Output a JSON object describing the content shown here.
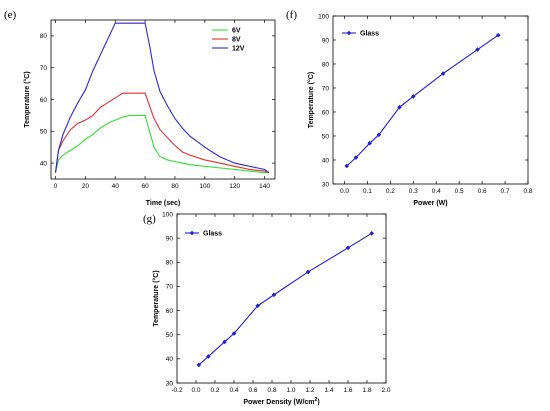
{
  "figure": {
    "panels": [
      {
        "label": "(e)"
      },
      {
        "label": "(f)"
      },
      {
        "label": "(g)"
      }
    ]
  },
  "chart_data": [
    {
      "type": "line",
      "panel": "(e)",
      "xlabel": "Time (sec)",
      "ylabel": "Temperature (°C)",
      "xlim": [
        -3,
        147
      ],
      "ylim": [
        35,
        85
      ],
      "xticks": [
        0,
        20,
        40,
        60,
        80,
        100,
        120,
        140
      ],
      "yticks": [
        40,
        50,
        60,
        70,
        80
      ],
      "legend_position": "top-right",
      "series": [
        {
          "name": "6V",
          "color": "#33dd33",
          "x": [
            0,
            2,
            5,
            10,
            15,
            20,
            25,
            30,
            35,
            40,
            45,
            50,
            55,
            60,
            63,
            66,
            70,
            75,
            80,
            85,
            90,
            100,
            110,
            120,
            130,
            140,
            143
          ],
          "y": [
            37,
            41,
            42.5,
            44,
            45.5,
            47.5,
            49,
            51,
            52.5,
            53.5,
            54.5,
            55,
            55,
            55,
            50,
            45,
            42,
            41,
            40.5,
            40,
            39.5,
            39,
            38.5,
            38,
            37.5,
            37,
            37
          ]
        },
        {
          "name": "8V",
          "color": "#e03030",
          "x": [
            0,
            2,
            5,
            10,
            15,
            20,
            25,
            30,
            35,
            40,
            45,
            50,
            55,
            60,
            63,
            66,
            70,
            75,
            80,
            85,
            90,
            100,
            110,
            120,
            130,
            140,
            143
          ],
          "y": [
            37,
            44,
            47,
            50.5,
            52.5,
            53.5,
            55,
            57.5,
            59,
            60.5,
            62,
            62,
            62,
            62,
            58,
            54,
            50.5,
            48,
            45.5,
            43.5,
            42.5,
            41,
            40,
            39,
            38,
            37.5,
            37
          ]
        },
        {
          "name": "12V",
          "color": "#2a2ad0",
          "x": [
            0,
            2,
            5,
            10,
            15,
            20,
            25,
            30,
            35,
            40,
            45,
            50,
            55,
            60,
            63,
            66,
            70,
            75,
            80,
            85,
            90,
            100,
            110,
            120,
            130,
            140,
            143
          ],
          "y": [
            37,
            44,
            49,
            54.5,
            59,
            63,
            69,
            74,
            79,
            84,
            84,
            84,
            84,
            84,
            77,
            69,
            62.5,
            58,
            54,
            51,
            48.5,
            45,
            42,
            40,
            39,
            38,
            37
          ]
        }
      ]
    },
    {
      "type": "line",
      "panel": "(f)",
      "xlabel": "Power (W)",
      "ylabel": "Temperature (°C)",
      "xlim": [
        -0.05,
        0.8
      ],
      "ylim": [
        30,
        100
      ],
      "xticks": [
        0.0,
        0.1,
        0.2,
        0.3,
        0.4,
        0.5,
        0.6,
        0.7,
        0.8
      ],
      "yticks": [
        30,
        40,
        50,
        60,
        70,
        80,
        90,
        100
      ],
      "legend_position": "top-left",
      "series": [
        {
          "name": "Glass",
          "color": "#1f1fd0",
          "marker": "diamond",
          "x": [
            0.01,
            0.05,
            0.11,
            0.15,
            0.24,
            0.3,
            0.43,
            0.58,
            0.67
          ],
          "y": [
            37.5,
            41,
            47,
            50.5,
            62,
            66.5,
            76,
            86,
            92
          ]
        }
      ]
    },
    {
      "type": "line",
      "panel": "(g)",
      "xlabel": "Power Density (W/cm",
      "xlabel_superscript": "2",
      "xlabel_suffix": ")",
      "ylabel": "Temperature (°C)",
      "xlim": [
        -0.2,
        2.0
      ],
      "ylim": [
        30,
        100
      ],
      "xticks": [
        -0.2,
        0.0,
        0.2,
        0.4,
        0.6,
        0.8,
        1.0,
        1.2,
        1.4,
        1.6,
        1.8,
        2.0
      ],
      "yticks": [
        30,
        40,
        50,
        60,
        70,
        80,
        90,
        100
      ],
      "legend_position": "top-left",
      "series": [
        {
          "name": "Glass",
          "color": "#1f1fd0",
          "marker": "diamond",
          "x": [
            0.03,
            0.13,
            0.3,
            0.4,
            0.65,
            0.82,
            1.18,
            1.6,
            1.85
          ],
          "y": [
            37.5,
            41,
            47,
            50.5,
            62,
            66.5,
            76,
            86,
            92
          ]
        }
      ]
    }
  ]
}
